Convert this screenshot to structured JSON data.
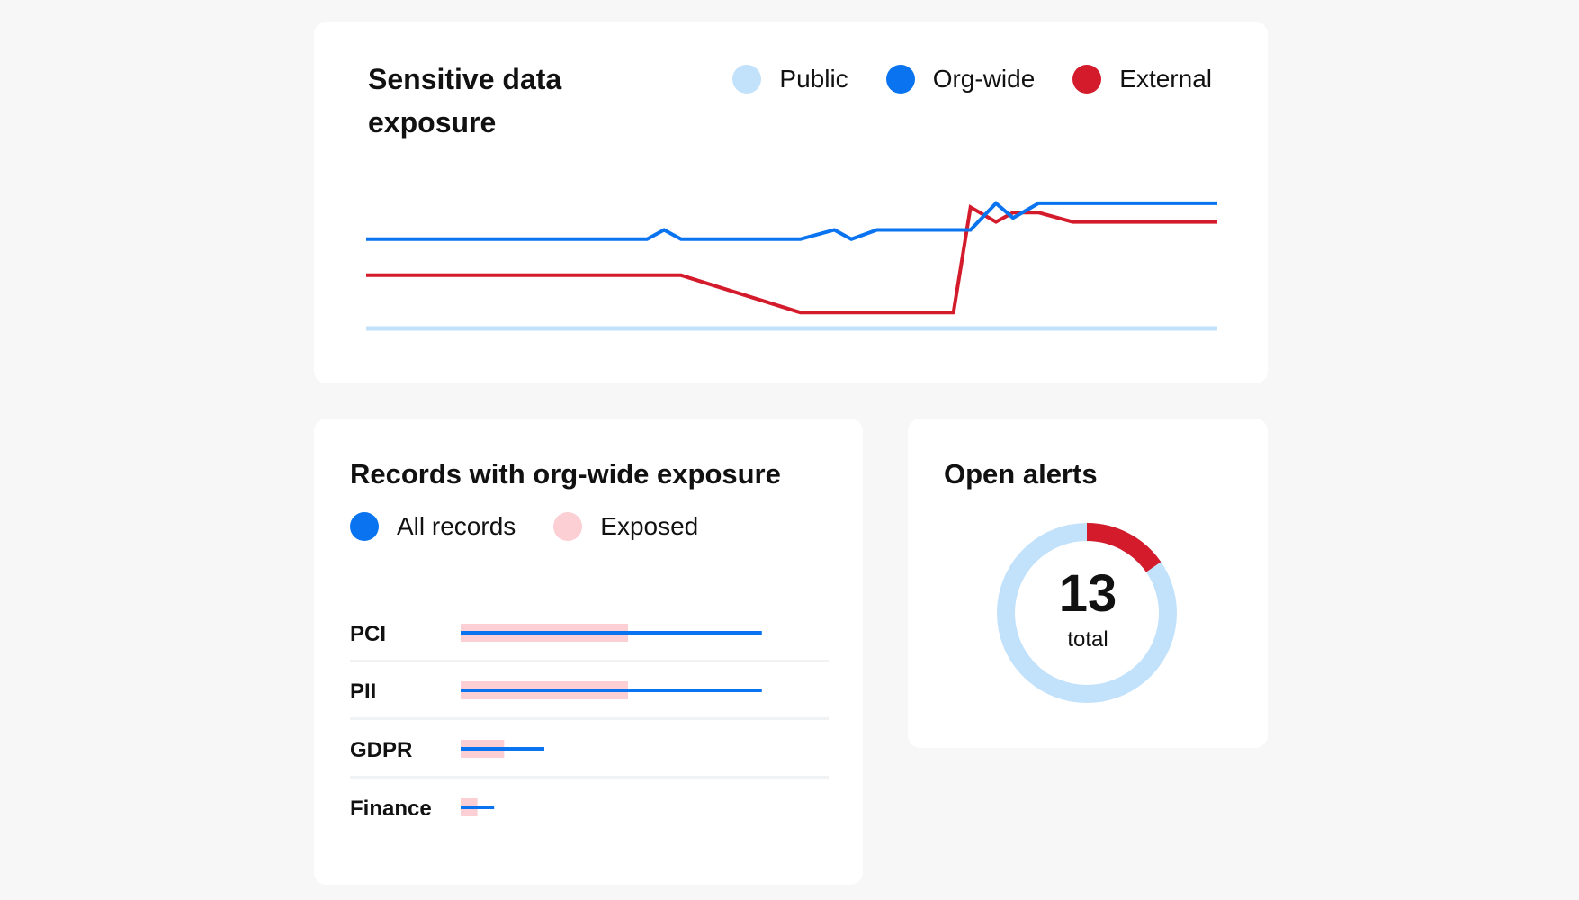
{
  "exposure_card": {
    "title": "Sensitive data exposure",
    "legend": [
      {
        "label": "Public",
        "color": "#c2e1fb"
      },
      {
        "label": "Org-wide",
        "color": "#0a74f0"
      },
      {
        "label": "External",
        "color": "#d41b2c"
      }
    ]
  },
  "records_card": {
    "title": "Records with org-wide exposure",
    "legend": [
      {
        "label": "All records",
        "color": "#0a74f0"
      },
      {
        "label": "Exposed",
        "color": "#fbcfd3"
      }
    ]
  },
  "alerts_card": {
    "title": "Open alerts",
    "total": "13",
    "total_label": "total"
  },
  "chart_data": [
    {
      "type": "line",
      "title": "Sensitive data exposure",
      "x": [
        0,
        33,
        35,
        37,
        51,
        55,
        57,
        60,
        69,
        71,
        74,
        76,
        79,
        83,
        100
      ],
      "xlim": [
        0,
        100
      ],
      "ylim": [
        0,
        100
      ],
      "grid": false,
      "legend_position": "top-right",
      "series": [
        {
          "name": "Public",
          "color": "#c2e1fb",
          "values": [
            0,
            0,
            0,
            0,
            0,
            0,
            0,
            0,
            0,
            0,
            0,
            0,
            0,
            0,
            0
          ]
        },
        {
          "name": "Org-wide",
          "color": "#0a74f0",
          "values": [
            67,
            67,
            74,
            67,
            67,
            74,
            67,
            74,
            74,
            74,
            94,
            83,
            94,
            94,
            94
          ]
        },
        {
          "name": "External",
          "color": "#d41b2c",
          "values": [
            40,
            40,
            40,
            40,
            12,
            12,
            12,
            12,
            12,
            91,
            80,
            87,
            87,
            80,
            80
          ]
        }
      ]
    },
    {
      "type": "bar",
      "title": "Records with org-wide exposure",
      "orientation": "horizontal",
      "categories": [
        "PCI",
        "PII",
        "GDPR",
        "Finance"
      ],
      "xlim": [
        0,
        100
      ],
      "series": [
        {
          "name": "All records",
          "color": "#0a74f0",
          "values": [
            90,
            90,
            25,
            10
          ]
        },
        {
          "name": "Exposed",
          "color": "#fbcfd3",
          "values": [
            50,
            50,
            13,
            5
          ]
        }
      ]
    },
    {
      "type": "pie",
      "title": "Open alerts",
      "style": "donut",
      "center_text": "13",
      "center_subtext": "total",
      "slices": [
        {
          "value": 11,
          "color": "#c2e1fb"
        },
        {
          "value": 2,
          "color": "#d41b2c"
        }
      ]
    }
  ]
}
